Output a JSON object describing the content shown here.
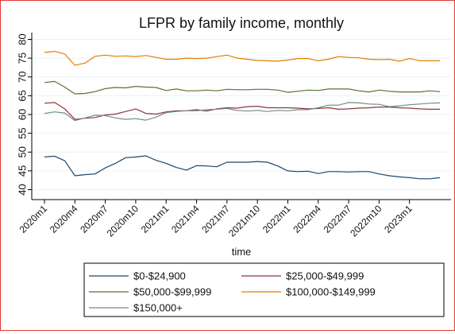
{
  "chart_data": {
    "type": "line",
    "title": "LFPR by family income, monthly",
    "xlabel": "time",
    "ylabel": "",
    "ylim": [
      40,
      80
    ],
    "yticks": [
      40,
      45,
      50,
      55,
      60,
      65,
      70,
      75,
      80
    ],
    "x": [
      "2020m1",
      "2020m2",
      "2020m3",
      "2020m4",
      "2020m5",
      "2020m6",
      "2020m7",
      "2020m8",
      "2020m9",
      "2020m10",
      "2020m11",
      "2020m12",
      "2021m1",
      "2021m2",
      "2021m3",
      "2021m4",
      "2021m5",
      "2021m6",
      "2021m7",
      "2021m8",
      "2021m9",
      "2021m10",
      "2021m11",
      "2021m12",
      "2022m1",
      "2022m2",
      "2022m3",
      "2022m4",
      "2022m5",
      "2022m6",
      "2022m7",
      "2022m8",
      "2022m9",
      "2022m10",
      "2022m11",
      "2022m12",
      "2023m1",
      "2023m2",
      "2023m3",
      "2023m4"
    ],
    "xticks": [
      "2020m1",
      "2020m4",
      "2020m7",
      "2020m10",
      "2021m1",
      "2021m4",
      "2021m7",
      "2021m10",
      "2022m1",
      "2022m4",
      "2022m7",
      "2022m10",
      "2023m1"
    ],
    "grid": true,
    "legend_position": "bottom",
    "series": [
      {
        "name": "$0-$24,900",
        "color": "#1a476f",
        "values": [
          48.7,
          48.9,
          47.7,
          43.7,
          44.0,
          44.2,
          45.8,
          47.0,
          48.5,
          48.7,
          49.0,
          47.8,
          47.0,
          45.9,
          45.2,
          46.4,
          46.3,
          46.1,
          47.3,
          47.3,
          47.3,
          47.5,
          47.3,
          46.3,
          45.0,
          44.8,
          44.9,
          44.3,
          44.8,
          44.8,
          44.7,
          44.8,
          44.8,
          44.2,
          43.7,
          43.4,
          43.2,
          42.9,
          42.9,
          43.2
        ]
      },
      {
        "name": "$25,000-$49,999",
        "color": "#90353b",
        "values": [
          63.0,
          63.2,
          61.5,
          58.7,
          59.0,
          59.2,
          59.9,
          60.1,
          60.8,
          61.5,
          60.3,
          60.1,
          60.7,
          61.0,
          61.0,
          61.3,
          60.9,
          61.5,
          61.8,
          61.7,
          62.1,
          62.2,
          61.8,
          61.8,
          61.8,
          61.7,
          61.5,
          61.6,
          61.8,
          61.4,
          61.5,
          61.7,
          61.8,
          62.0,
          62.0,
          61.8,
          61.7,
          61.5,
          61.4,
          61.4
        ]
      },
      {
        "name": "$50,000-$99,999",
        "color": "#55752f",
        "values": [
          68.5,
          68.8,
          67.3,
          65.5,
          65.6,
          66.1,
          66.9,
          67.2,
          67.1,
          67.5,
          67.3,
          67.2,
          66.4,
          66.8,
          66.3,
          66.3,
          66.5,
          66.3,
          66.7,
          66.6,
          66.6,
          66.7,
          66.7,
          66.5,
          65.9,
          66.2,
          66.5,
          66.4,
          66.8,
          66.8,
          66.8,
          66.3,
          66.0,
          66.5,
          66.2,
          66.0,
          66.0,
          66.0,
          66.3,
          66.1
        ]
      },
      {
        "name": "$100,000-$149,999",
        "color": "#e37e00",
        "values": [
          76.5,
          76.8,
          76.1,
          73.1,
          73.7,
          75.5,
          75.8,
          75.5,
          75.6,
          75.4,
          75.7,
          75.2,
          74.7,
          74.7,
          75.0,
          74.9,
          75.0,
          75.4,
          75.8,
          75.0,
          74.7,
          74.4,
          74.3,
          74.2,
          74.5,
          74.9,
          74.9,
          74.3,
          74.7,
          75.4,
          75.2,
          75.1,
          74.7,
          74.6,
          74.7,
          74.2,
          74.9,
          74.3,
          74.3,
          74.3
        ]
      },
      {
        "name": "$150,000+",
        "color": "#6e8e84",
        "values": [
          60.3,
          60.7,
          60.4,
          58.4,
          59.1,
          59.8,
          59.7,
          59.1,
          58.7,
          58.9,
          58.5,
          59.3,
          60.5,
          60.8,
          61.0,
          61.0,
          61.3,
          61.4,
          61.6,
          61.1,
          60.9,
          61.1,
          60.8,
          61.1,
          61.0,
          61.3,
          61.3,
          61.8,
          62.5,
          62.5,
          63.2,
          63.1,
          62.8,
          62.7,
          62.1,
          62.3,
          62.6,
          62.8,
          63.0,
          63.1
        ]
      }
    ]
  }
}
